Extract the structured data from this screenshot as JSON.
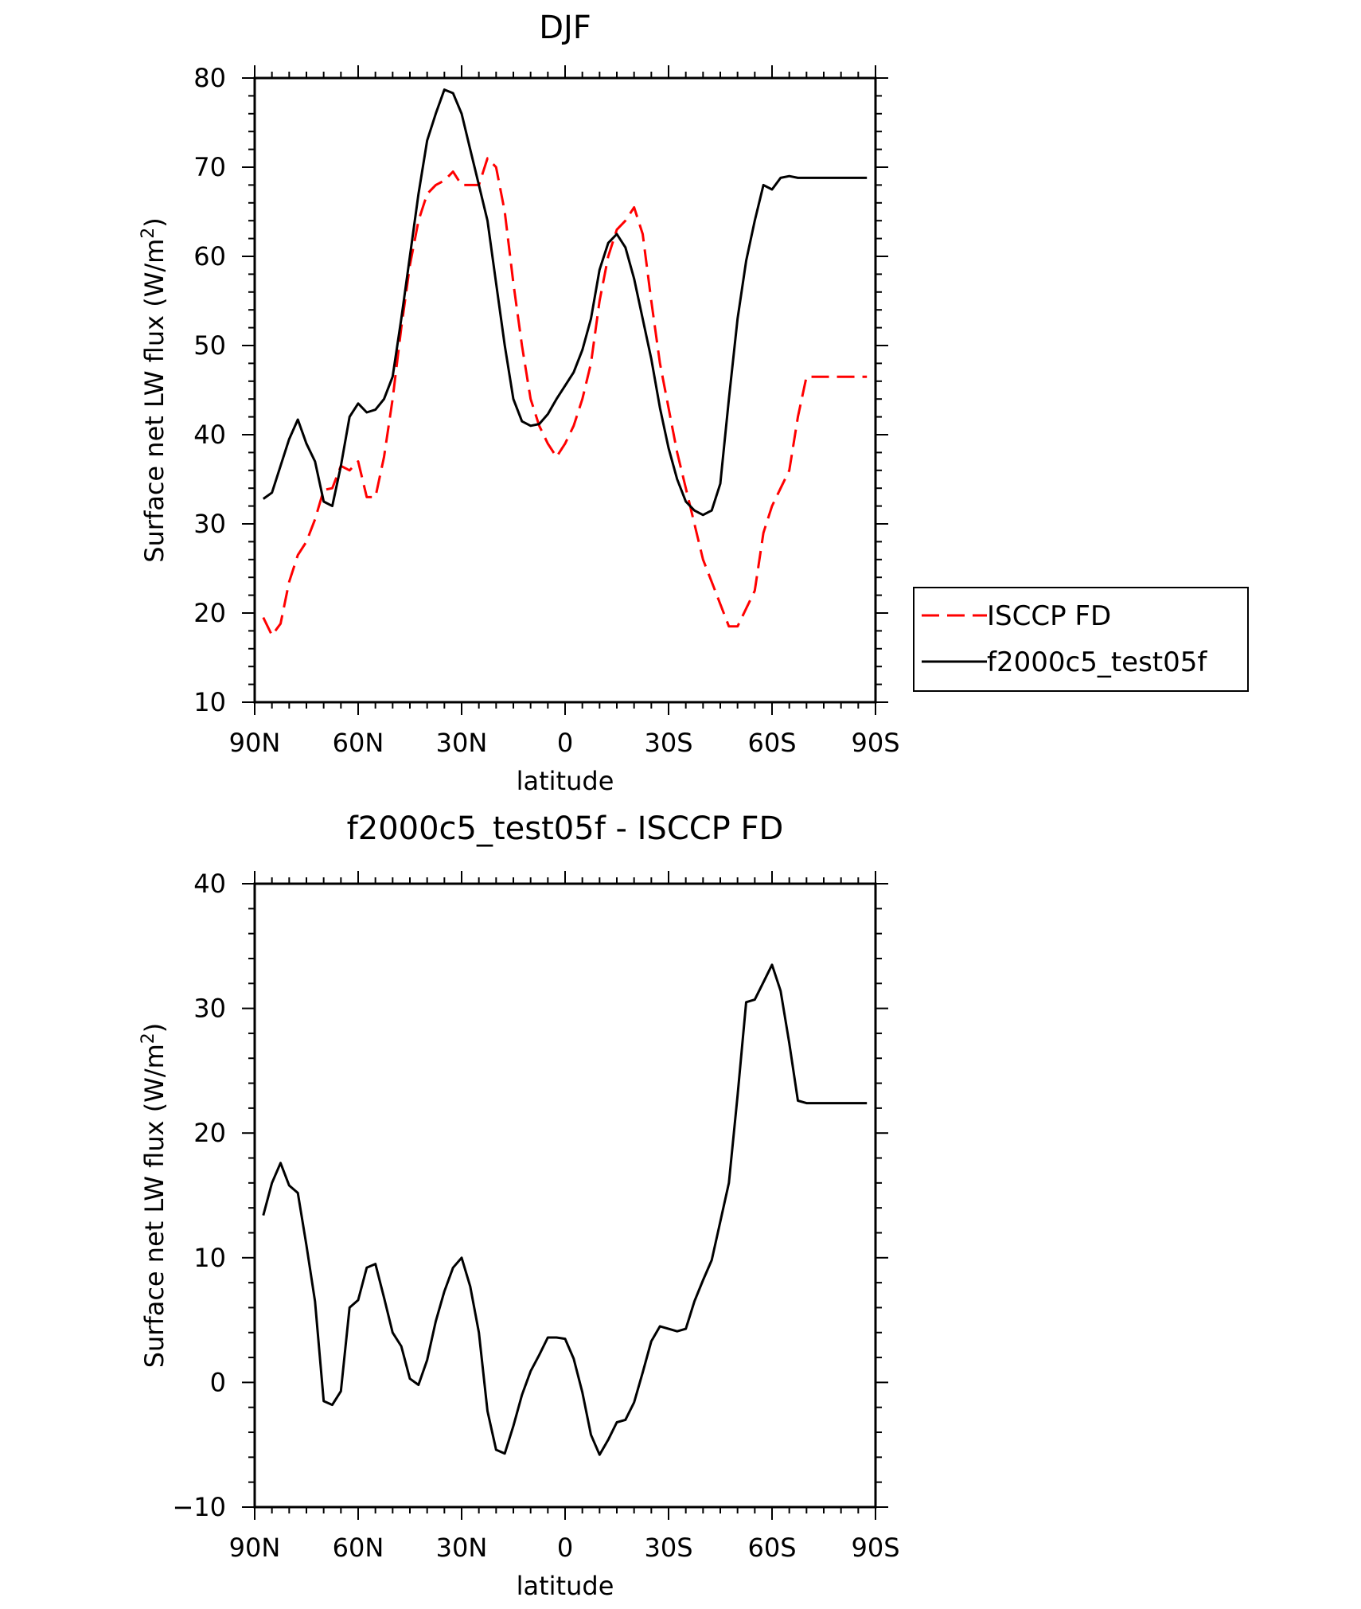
{
  "chart_data": [
    {
      "type": "line",
      "title": "DJF",
      "xlabel": "latitude",
      "ylabel": "Surface net LW flux (W/m",
      "ylabel_sup": "2",
      "ylabel_end": ")",
      "xlim": [
        90,
        -90
      ],
      "ylim": [
        10,
        80
      ],
      "x_ticks": [
        90,
        60,
        30,
        0,
        -30,
        -60,
        -90
      ],
      "x_tick_labels": [
        "90N",
        "60N",
        "30N",
        "0",
        "30S",
        "60S",
        "90S"
      ],
      "y_ticks": [
        10,
        20,
        30,
        40,
        50,
        60,
        70,
        80
      ],
      "y_tick_labels": [
        "10",
        "20",
        "30",
        "40",
        "50",
        "60",
        "70",
        "80"
      ],
      "legend_position": "outside-right",
      "series": [
        {
          "name": "ISCCP FD",
          "color": "#ff0000",
          "dash": "dashed",
          "x": [
            87.5,
            85,
            82.5,
            80,
            77.5,
            75,
            72.5,
            70,
            67.5,
            65,
            62.5,
            60,
            57.5,
            55,
            52.5,
            50,
            47.5,
            45,
            42.5,
            40,
            37.5,
            35,
            32.5,
            30,
            27.5,
            25,
            22.5,
            20,
            17.5,
            15,
            12.5,
            10,
            7.5,
            5,
            2.5,
            0,
            -2.5,
            -5,
            -7.5,
            -10,
            -12.5,
            -15,
            -17.5,
            -20,
            -22.5,
            -25,
            -27.5,
            -30,
            -32.5,
            -35,
            -37.5,
            -40,
            -42.5,
            -45,
            -47.5,
            -50,
            -52.5,
            -55,
            -57.5,
            -60,
            -62.5,
            -65,
            -67.5,
            -70,
            -72.5,
            -75,
            -77.5,
            -80,
            -82.5,
            -85,
            -87.5
          ],
          "y": [
            19.5,
            17.5,
            18.8,
            23.5,
            26.5,
            28,
            30.5,
            33.8,
            34,
            36.5,
            36,
            37,
            33,
            33,
            37.5,
            44,
            52,
            59,
            64,
            67,
            68,
            68.5,
            69.5,
            68,
            68,
            68,
            71,
            70,
            65,
            57,
            50,
            44,
            41,
            39,
            37.5,
            39,
            41,
            44,
            48,
            55,
            60,
            63,
            64,
            65.5,
            62.5,
            55,
            48,
            43,
            38,
            34,
            30,
            26,
            23.5,
            21,
            18.5,
            18.5,
            20.5,
            22.5,
            29,
            32,
            34,
            36,
            42,
            46.5,
            46.5,
            46.5,
            46.5,
            46.5,
            46.5,
            46.5,
            46.5
          ]
        },
        {
          "name": "f2000c5_test05f",
          "color": "#000000",
          "dash": "solid",
          "x": [
            87.5,
            85,
            82.5,
            80,
            77.5,
            75,
            72.5,
            70,
            67.5,
            65,
            62.5,
            60,
            57.5,
            55,
            52.5,
            50,
            47.5,
            45,
            42.5,
            40,
            37.5,
            35,
            32.5,
            30,
            27.5,
            25,
            22.5,
            20,
            17.5,
            15,
            12.5,
            10,
            7.5,
            5,
            2.5,
            0,
            -2.5,
            -5,
            -7.5,
            -10,
            -12.5,
            -15,
            -17.5,
            -20,
            -22.5,
            -25,
            -27.5,
            -30,
            -32.5,
            -35,
            -37.5,
            -40,
            -42.5,
            -45,
            -47.5,
            -50,
            -52.5,
            -55,
            -57.5,
            -60,
            -62.5,
            -65,
            -67.5,
            -70,
            -72.5,
            -75,
            -77.5,
            -80,
            -82.5,
            -85,
            -87.5
          ],
          "y": [
            32.8,
            33.5,
            36.5,
            39.5,
            41.7,
            39,
            37,
            32.5,
            32,
            36.5,
            42,
            43.5,
            42.5,
            42.8,
            44,
            46.5,
            53,
            60,
            67,
            73,
            76,
            78.7,
            78.3,
            76,
            72,
            68,
            64,
            57,
            50,
            44,
            41.5,
            41,
            41.2,
            42.3,
            44,
            45.5,
            47,
            49.5,
            53,
            58.5,
            61.5,
            62.5,
            61,
            57.5,
            53,
            48.5,
            43,
            38.5,
            35,
            32.5,
            31.5,
            31,
            31.5,
            34.5,
            44,
            53,
            59.5,
            64,
            68,
            67.5,
            68.8,
            69,
            68.8,
            68.8,
            68.8,
            68.8,
            68.8,
            68.8,
            68.8,
            68.8,
            68.8
          ]
        }
      ]
    },
    {
      "type": "line",
      "title": "f2000c5_test05f - ISCCP FD",
      "xlabel": "latitude",
      "ylabel": "Surface net LW flux (W/m",
      "ylabel_sup": "2",
      "ylabel_end": ")",
      "xlim": [
        90,
        -90
      ],
      "ylim": [
        -10,
        40
      ],
      "x_ticks": [
        90,
        60,
        30,
        0,
        -30,
        -60,
        -90
      ],
      "x_tick_labels": [
        "90N",
        "60N",
        "30N",
        "0",
        "30S",
        "60S",
        "90S"
      ],
      "y_ticks": [
        -10,
        0,
        10,
        20,
        30,
        40
      ],
      "y_tick_labels": [
        "−10",
        "0",
        "10",
        "20",
        "30",
        "40"
      ],
      "series": [
        {
          "color": "#000000",
          "dash": "solid",
          "x": [
            87.5,
            85,
            82.5,
            80,
            77.5,
            75,
            72.5,
            70,
            67.5,
            65,
            62.5,
            60,
            57.5,
            55,
            52.5,
            50,
            47.5,
            45,
            42.5,
            40,
            37.5,
            35,
            32.5,
            30,
            27.5,
            25,
            22.5,
            20,
            17.5,
            15,
            12.5,
            10,
            7.5,
            5,
            2.5,
            0,
            -2.5,
            -5,
            -7.5,
            -10,
            -12.5,
            -15,
            -17.5,
            -20,
            -22.5,
            -25,
            -27.5,
            -30,
            -32.5,
            -35,
            -37.5,
            -40,
            -42.5,
            -45,
            -47.5,
            -50,
            -52.5,
            -55,
            -57.5,
            -60,
            -62.5,
            -65,
            -67.5,
            -70,
            -72.5,
            -75,
            -77.5,
            -80,
            -82.5,
            -85,
            -87.5
          ],
          "y": [
            13.4,
            16,
            17.6,
            15.8,
            15.2,
            11,
            6.5,
            -1.5,
            -1.8,
            -0.7,
            6,
            6.6,
            9.2,
            9.5,
            6.8,
            4,
            2.9,
            0.3,
            -0.2,
            1.8,
            4.9,
            7.3,
            9.2,
            10,
            7.7,
            4,
            -2.3,
            -5.4,
            -5.7,
            -3.5,
            -1,
            0.9,
            2.2,
            3.6,
            3.6,
            3.5,
            1.9,
            -0.8,
            -4.2,
            -5.8,
            -4.6,
            -3.2,
            -3,
            -1.6,
            0.8,
            3.3,
            4.5,
            4.3,
            4.1,
            4.3,
            6.5,
            8.2,
            9.8,
            12.9,
            16,
            23,
            30.5,
            30.7,
            32.1,
            33.5,
            31.4,
            27.2,
            22.6,
            22.4,
            22.4,
            22.4,
            22.4,
            22.4,
            22.4,
            22.4,
            22.4
          ]
        }
      ]
    }
  ]
}
